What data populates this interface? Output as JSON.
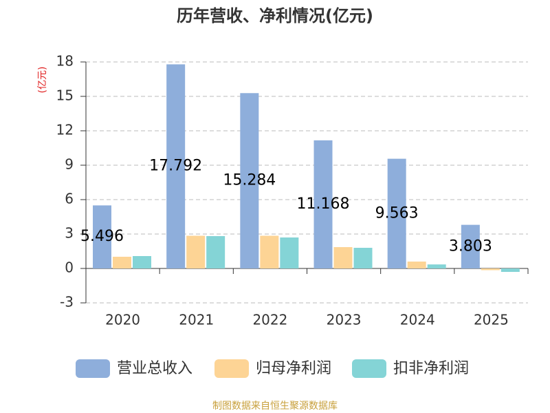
{
  "chart_data": {
    "type": "bar",
    "title": "历年营收、净利情况(亿元)",
    "y_label": "(亿元)",
    "source": "制图数据来自恒生聚源数据库",
    "categories": [
      "2020",
      "2021",
      "2022",
      "2023",
      "2024",
      "2025"
    ],
    "series": [
      {
        "name": "营业总收入",
        "color": "#8eaedb",
        "values": [
          5.496,
          17.792,
          15.284,
          11.168,
          9.563,
          3.803
        ]
      },
      {
        "name": "归母净利润",
        "color": "#fdd495",
        "values": [
          1.02,
          2.85,
          2.85,
          1.86,
          0.6,
          -0.15
        ]
      },
      {
        "name": "扣非净利润",
        "color": "#84d4d6",
        "values": [
          1.08,
          2.82,
          2.7,
          1.8,
          0.35,
          -0.3
        ]
      }
    ],
    "ylim": [
      -3,
      18
    ],
    "yticks": [
      -3,
      0,
      3,
      6,
      9,
      12,
      15,
      18
    ],
    "grid": true
  }
}
